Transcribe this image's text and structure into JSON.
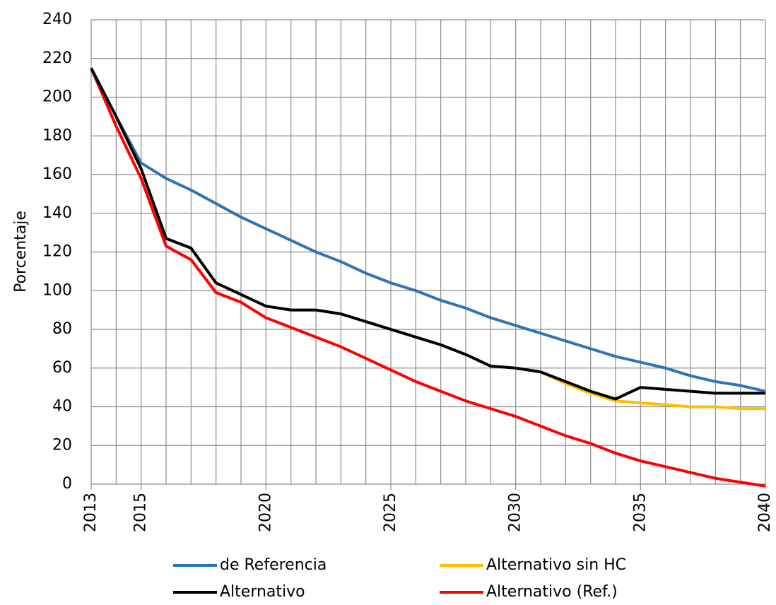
{
  "chart_data": {
    "type": "line",
    "y_label": "Porcentaje",
    "x": [
      2013,
      2014,
      2015,
      2016,
      2017,
      2018,
      2019,
      2020,
      2021,
      2022,
      2023,
      2024,
      2025,
      2026,
      2027,
      2028,
      2029,
      2030,
      2031,
      2032,
      2033,
      2034,
      2035,
      2036,
      2037,
      2038,
      2039,
      2040
    ],
    "series": [
      {
        "name": "de Referencia",
        "color": "#2e75b6",
        "values": [
          215,
          190,
          166,
          158,
          152,
          145,
          138,
          132,
          126,
          120,
          115,
          109,
          104,
          100,
          95,
          91,
          86,
          82,
          78,
          74,
          70,
          66,
          63,
          60,
          56,
          53,
          51,
          48
        ]
      },
      {
        "name": "Alternativo sin HC",
        "color": "#ffc000",
        "values": [
          215,
          190,
          163,
          127,
          122,
          104,
          98,
          92,
          90,
          90,
          88,
          84,
          80,
          76,
          72,
          67,
          61,
          60,
          58,
          52,
          47,
          43,
          42,
          41,
          40,
          40,
          39,
          39
        ]
      },
      {
        "name": "Alternativo (Ref.)",
        "color": "#ff0000",
        "values": [
          215,
          185,
          158,
          123,
          116,
          99,
          94,
          86,
          81,
          76,
          71,
          65,
          59,
          53,
          48,
          43,
          39,
          35,
          30,
          25,
          21,
          16,
          12,
          9,
          6,
          3,
          1,
          -1
        ]
      },
      {
        "name": "Alternativo",
        "color": "#000000",
        "values": [
          215,
          190,
          163,
          127,
          122,
          104,
          98,
          92,
          90,
          90,
          88,
          84,
          80,
          76,
          72,
          67,
          61,
          60,
          58,
          53,
          48,
          44,
          50,
          49,
          48,
          47,
          47,
          47
        ]
      }
    ],
    "legend_order": [
      0,
      1,
      3,
      2
    ],
    "xlim": [
      2013,
      2040
    ],
    "xticks": [
      2013,
      2015,
      2020,
      2025,
      2030,
      2035,
      2040
    ],
    "xgrid": [
      2013,
      2014,
      2015,
      2016,
      2017,
      2018,
      2019,
      2020,
      2021,
      2022,
      2023,
      2024,
      2025,
      2026,
      2027,
      2028,
      2029,
      2030,
      2031,
      2032,
      2033,
      2034,
      2035,
      2036,
      2037,
      2038,
      2039,
      2040
    ],
    "ylim": [
      0,
      240
    ],
    "yticks": [
      0,
      20,
      40,
      60,
      80,
      100,
      120,
      140,
      160,
      180,
      200,
      220,
      240
    ],
    "grid": true
  }
}
